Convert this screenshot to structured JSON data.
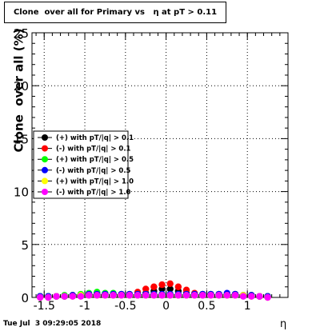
{
  "chart_data": {
    "type": "scatter",
    "title": "Clone  over all for Primary vs   η at pT > 0.11",
    "xlabel": "η",
    "ylabel": "Clone  over all (%)",
    "xlim": [
      -1.65,
      1.5
    ],
    "ylim": [
      0,
      25
    ],
    "x_ticks": [
      "-1.5",
      "-1",
      "-0.5",
      "0",
      "0.5",
      "1"
    ],
    "y_ticks": [
      "0",
      "5",
      "10",
      "15",
      "20",
      "25"
    ],
    "grid": true,
    "legend_position": "left-middle",
    "series": [
      {
        "name": "(+) with pT/|q| > 0.1",
        "color": "#000000",
        "x": [
          -1.55,
          -1.45,
          -1.35,
          -1.25,
          -1.15,
          -1.05,
          -0.95,
          -0.85,
          -0.75,
          -0.65,
          -0.55,
          -0.45,
          -0.35,
          -0.25,
          -0.15,
          -0.05,
          0.05,
          0.15,
          0.25,
          0.35,
          0.45,
          0.55,
          0.65,
          0.75,
          0.85,
          0.95,
          1.05,
          1.15,
          1.25
        ],
        "y": [
          0.1,
          0.1,
          0.1,
          0.1,
          0.2,
          0.2,
          0.3,
          0.4,
          0.3,
          0.3,
          0.3,
          0.3,
          0.3,
          0.4,
          0.6,
          0.8,
          0.8,
          0.6,
          0.4,
          0.3,
          0.3,
          0.3,
          0.3,
          0.3,
          0.3,
          0.2,
          0.2,
          0.1,
          0.1
        ]
      },
      {
        "name": "(-) with pT/|q| > 0.1",
        "color": "#ff0000",
        "x": [
          -1.55,
          -1.45,
          -1.35,
          -1.25,
          -1.15,
          -1.05,
          -0.95,
          -0.85,
          -0.75,
          -0.65,
          -0.55,
          -0.45,
          -0.35,
          -0.25,
          -0.15,
          -0.05,
          0.05,
          0.15,
          0.25,
          0.35,
          0.45,
          0.55,
          0.65,
          0.75,
          0.85,
          0.95,
          1.05,
          1.15,
          1.25
        ],
        "y": [
          0.1,
          0.1,
          0.1,
          0.1,
          0.2,
          0.2,
          0.3,
          0.3,
          0.3,
          0.3,
          0.3,
          0.3,
          0.5,
          0.8,
          1.0,
          1.2,
          1.3,
          1.0,
          0.7,
          0.4,
          0.3,
          0.3,
          0.3,
          0.3,
          0.3,
          0.2,
          0.2,
          0.1,
          0.1
        ]
      },
      {
        "name": "(+) with pT/|q| > 0.5",
        "color": "#00ff00",
        "x": [
          -1.55,
          -1.45,
          -1.35,
          -1.25,
          -1.15,
          -1.05,
          -0.95,
          -0.85,
          -0.75,
          -0.65,
          -0.55,
          -0.45,
          -0.35,
          -0.25,
          -0.15,
          -0.05,
          0.05,
          0.15,
          0.25,
          0.35,
          0.45,
          0.55,
          0.65,
          0.75,
          0.85,
          0.95,
          1.05,
          1.15,
          1.25
        ],
        "y": [
          0.1,
          0.1,
          0.1,
          0.2,
          0.2,
          0.3,
          0.4,
          0.5,
          0.4,
          0.4,
          0.3,
          0.3,
          0.3,
          0.3,
          0.3,
          0.3,
          0.3,
          0.3,
          0.3,
          0.3,
          0.3,
          0.3,
          0.3,
          0.3,
          0.3,
          0.2,
          0.2,
          0.1,
          0.1
        ]
      },
      {
        "name": "(-) with pT/|q| > 0.5",
        "color": "#0000ff",
        "x": [
          -1.55,
          -1.45,
          -1.35,
          -1.25,
          -1.15,
          -1.05,
          -0.95,
          -0.85,
          -0.75,
          -0.65,
          -0.55,
          -0.45,
          -0.35,
          -0.25,
          -0.15,
          -0.05,
          0.05,
          0.15,
          0.25,
          0.35,
          0.45,
          0.55,
          0.65,
          0.75,
          0.85,
          0.95,
          1.05,
          1.15,
          1.25
        ],
        "y": [
          0.1,
          0.1,
          0.1,
          0.1,
          0.2,
          0.2,
          0.3,
          0.3,
          0.3,
          0.3,
          0.3,
          0.3,
          0.3,
          0.3,
          0.3,
          0.3,
          0.3,
          0.3,
          0.3,
          0.3,
          0.3,
          0.3,
          0.3,
          0.4,
          0.3,
          0.2,
          0.2,
          0.1,
          0.1
        ]
      },
      {
        "name": "(+) with pT/|q| > 1.0",
        "color": "#ffff00",
        "x": [
          -1.55,
          -1.45,
          -1.35,
          -1.25,
          -1.15,
          -1.05,
          -0.95,
          -0.85,
          -0.75,
          -0.65,
          -0.55,
          -0.45,
          -0.35,
          -0.25,
          -0.15,
          -0.05,
          0.05,
          0.15,
          0.25,
          0.35,
          0.45,
          0.55,
          0.65,
          0.75,
          0.85,
          0.95,
          1.05,
          1.15,
          1.25
        ],
        "y": [
          0.0,
          0.0,
          0.1,
          0.1,
          0.1,
          0.2,
          0.2,
          0.2,
          0.2,
          0.2,
          0.2,
          0.2,
          0.2,
          0.2,
          0.2,
          0.2,
          0.2,
          0.2,
          0.2,
          0.2,
          0.2,
          0.2,
          0.2,
          0.2,
          0.2,
          0.2,
          0.1,
          0.1,
          0.0
        ]
      },
      {
        "name": "(-) with pT/|q| > 1.0",
        "color": "#ff00ff",
        "x": [
          -1.55,
          -1.45,
          -1.35,
          -1.25,
          -1.15,
          -1.05,
          -0.95,
          -0.85,
          -0.75,
          -0.65,
          -0.55,
          -0.45,
          -0.35,
          -0.25,
          -0.15,
          -0.05,
          0.05,
          0.15,
          0.25,
          0.35,
          0.45,
          0.55,
          0.65,
          0.75,
          0.85,
          0.95,
          1.05,
          1.15,
          1.25
        ],
        "y": [
          0.0,
          0.0,
          0.1,
          0.1,
          0.1,
          0.1,
          0.2,
          0.2,
          0.2,
          0.2,
          0.2,
          0.2,
          0.2,
          0.2,
          0.2,
          0.2,
          0.2,
          0.2,
          0.2,
          0.2,
          0.2,
          0.2,
          0.2,
          0.2,
          0.2,
          0.1,
          0.1,
          0.1,
          0.0
        ]
      }
    ]
  },
  "footer": {
    "timestamp": "Tue Jul  3 09:29:05 2018"
  }
}
